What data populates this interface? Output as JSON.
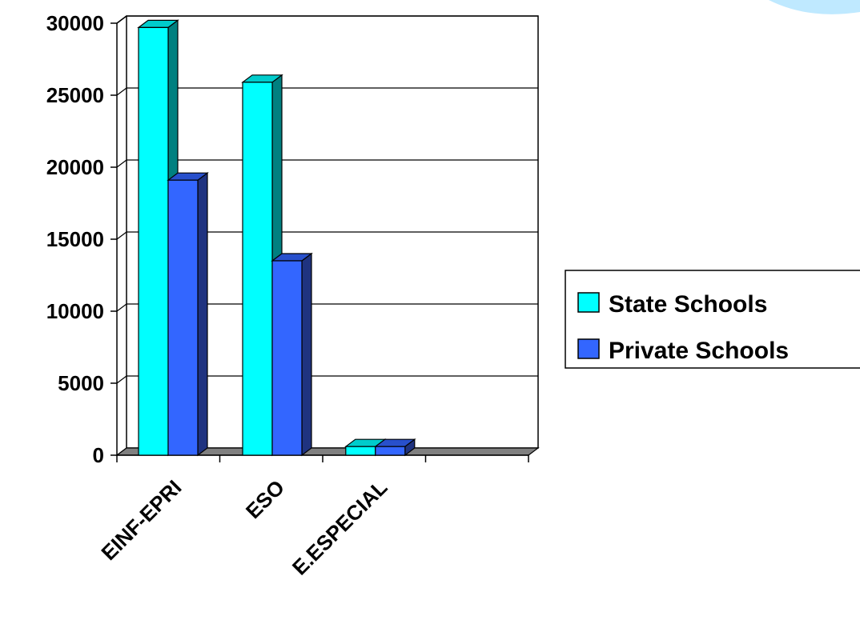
{
  "chart_data": {
    "type": "bar",
    "categories": [
      "EINF-EPRI",
      "ESO",
      "E.ESPECIAL",
      ""
    ],
    "series": [
      {
        "name": "State Schools",
        "values": [
          29700,
          25900,
          600,
          null
        ],
        "color": "#00FFFF",
        "side_color": "#008080",
        "top_color": "#00CCCC"
      },
      {
        "name": "Private Schools",
        "values": [
          19100,
          13500,
          600,
          null
        ],
        "color": "#3366FF",
        "side_color": "#1F3380",
        "top_color": "#2850CC"
      }
    ],
    "ylim": [
      0,
      30000
    ],
    "yticks": [
      "0",
      "5000",
      "10000",
      "15000",
      "20000",
      "25000",
      "30000"
    ],
    "ytick_values": [
      0,
      5000,
      10000,
      15000,
      20000,
      25000,
      30000
    ],
    "grid": true,
    "legend_position": "right",
    "title": "",
    "xlabel": "",
    "ylabel": ""
  },
  "colors": {
    "grid": "#000000",
    "floor": "#808080",
    "decoration": "#BFE9FF"
  }
}
